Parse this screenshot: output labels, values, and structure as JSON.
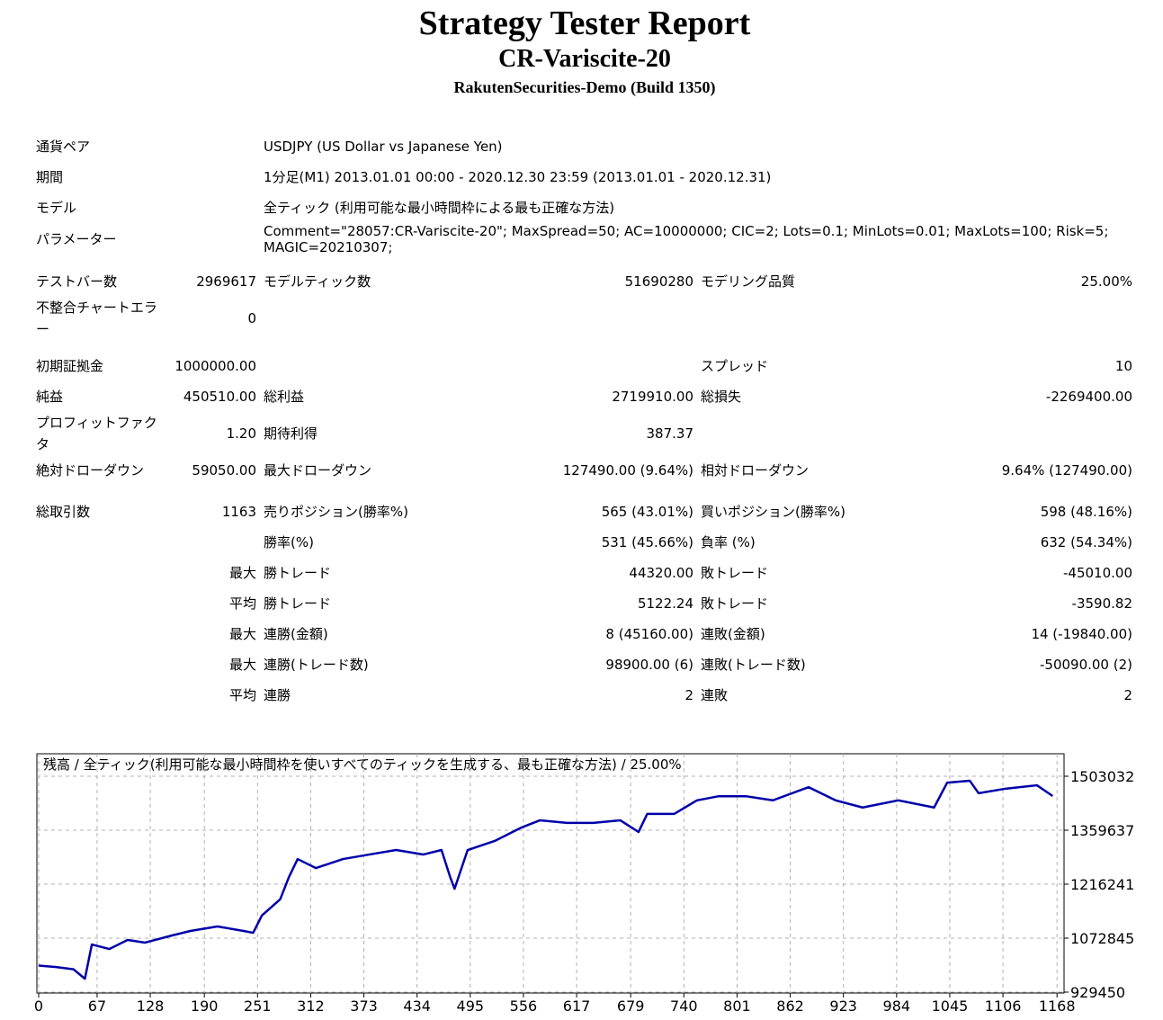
{
  "header": {
    "title": "Strategy Tester Report",
    "subtitle": "CR-Variscite-20",
    "server": "RakutenSecurities-Demo (Build 1350)"
  },
  "sections": [
    [
      [
        "通貨ペア",
        "USDJPY (US Dollar vs Japanese Yen)"
      ],
      [
        "期間",
        "1分足(M1) 2013.01.01 00:00 - 2020.12.30 23:59 (2013.01.01 - 2020.12.31)"
      ],
      [
        "モデル",
        "全ティック (利用可能な最小時間枠による最も正確な方法)"
      ],
      [
        "パラメーター",
        "Comment=\"28057:CR-Variscite-20\"; MaxSpread=50; AC=10000000; CIC=2; Lots=0.1; MinLots=0.01; MaxLots=100; Risk=5; MAGIC=20210307;"
      ]
    ],
    [
      [
        "テストバー数",
        "2969617",
        "モデルティック数",
        "51690280",
        "モデリング品質",
        "25.00%"
      ],
      [
        "不整合チャートエラー",
        "0",
        null,
        null,
        null,
        null
      ]
    ],
    [
      [
        "初期証拠金",
        "1000000.00",
        null,
        null,
        "スプレッド",
        "10"
      ],
      [
        "純益",
        "450510.00",
        "総利益",
        "2719910.00",
        "総損失",
        "-2269400.00"
      ],
      [
        "プロフィットファクタ",
        "1.20",
        "期待利得",
        "387.37",
        null,
        null
      ],
      [
        "絶対ドローダウン",
        "59050.00",
        "最大ドローダウン",
        "127490.00 (9.64%)",
        "相対ドローダウン",
        "9.64% (127490.00)"
      ]
    ],
    [
      [
        "総取引数",
        "1163",
        "売りポジション(勝率%)",
        "565 (43.01%)",
        "買いポジション(勝率%)",
        "598 (48.16%)"
      ],
      [
        null,
        null,
        "勝率(%)",
        "531 (45.66%)",
        "負率 (%)",
        "632 (54.34%)"
      ],
      [
        null,
        "最大",
        "勝トレード",
        "44320.00",
        "敗トレード",
        "-45010.00"
      ],
      [
        null,
        "平均",
        "勝トレード",
        "5122.24",
        "敗トレード",
        "-3590.82"
      ],
      [
        null,
        "最大",
        "連勝(金額)",
        "8 (45160.00)",
        "連敗(金額)",
        "14 (-19840.00)"
      ],
      [
        null,
        "最大",
        "連勝(トレード数)",
        "98900.00 (6)",
        "連敗(トレード数)",
        "-50090.00 (2)"
      ],
      [
        null,
        "平均",
        "連勝",
        "2",
        "連敗",
        "2"
      ]
    ]
  ],
  "chart_data": {
    "type": "line",
    "title": "残高 / 全ティック(利用可能な最小時間枠を使いすべてのティックを生成する、最も正確な方法) / 25.00%",
    "x": [
      0,
      20,
      40,
      53,
      61,
      81,
      102,
      122,
      153,
      174,
      205,
      235,
      246,
      256,
      277,
      287,
      297,
      318,
      349,
      379,
      410,
      441,
      462,
      472,
      477,
      492,
      523,
      554,
      575,
      606,
      636,
      667,
      688,
      698,
      729,
      755,
      780,
      811,
      842,
      883,
      914,
      945,
      986,
      1027,
      1042,
      1068,
      1078,
      1109,
      1145,
      1163
    ],
    "series": [
      {
        "name": "残高",
        "color": "#0000aa",
        "values": [
          1000000,
          996000,
          990000,
          965000,
          1056000,
          1044000,
          1068000,
          1061000,
          1080000,
          1092000,
          1104000,
          1092000,
          1087000,
          1133000,
          1176000,
          1235000,
          1283000,
          1259000,
          1283000,
          1295000,
          1307000,
          1295000,
          1307000,
          1235000,
          1204000,
          1307000,
          1331000,
          1367000,
          1386000,
          1379000,
          1379000,
          1386000,
          1355000,
          1403000,
          1403000,
          1439000,
          1450000,
          1450000,
          1439000,
          1474000,
          1439000,
          1420000,
          1439000,
          1420000,
          1486000,
          1491000,
          1458000,
          1470000,
          1479000,
          1450510
        ]
      }
    ],
    "xlim": [
      0,
      1174
    ],
    "xticks": [
      0,
      67,
      128,
      190,
      251,
      312,
      373,
      434,
      495,
      556,
      617,
      679,
      740,
      801,
      862,
      923,
      984,
      1045,
      1106,
      1168
    ],
    "ylim": [
      929450,
      1562780
    ],
    "yticks": [
      929450,
      1072845,
      1216241,
      1359637,
      1503032
    ],
    "grid": true
  }
}
